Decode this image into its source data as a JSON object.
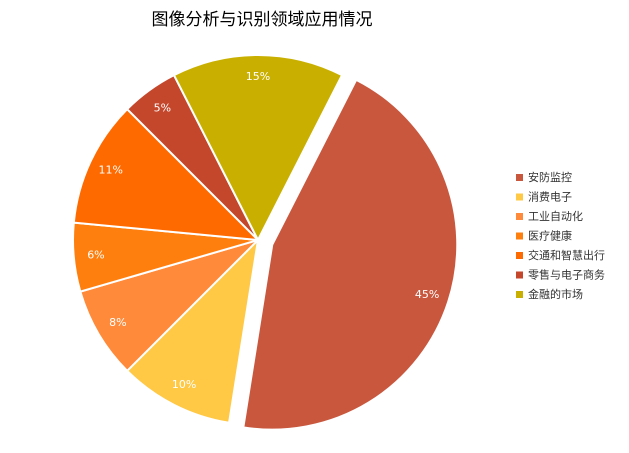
{
  "chart_data": {
    "type": "pie",
    "title": "图像分析与识别领域应用情况",
    "categories": [
      "安防监控",
      "消费电子",
      "工业自动化",
      "医疗健康",
      "交通和智慧出行",
      "零售与电子商务",
      "金融的市场"
    ],
    "values": [
      45,
      10,
      8,
      6,
      11,
      5,
      15
    ],
    "value_labels": [
      "45%",
      "10%",
      "8%",
      "6%",
      "11%",
      "5%",
      "15%"
    ],
    "colors": [
      "#c9573e",
      "#ffc845",
      "#ff8a3a",
      "#ff7f0e",
      "#ff6a00",
      "#c4472c",
      "#c9b000"
    ],
    "exploded": [
      0
    ],
    "legend": "right"
  }
}
